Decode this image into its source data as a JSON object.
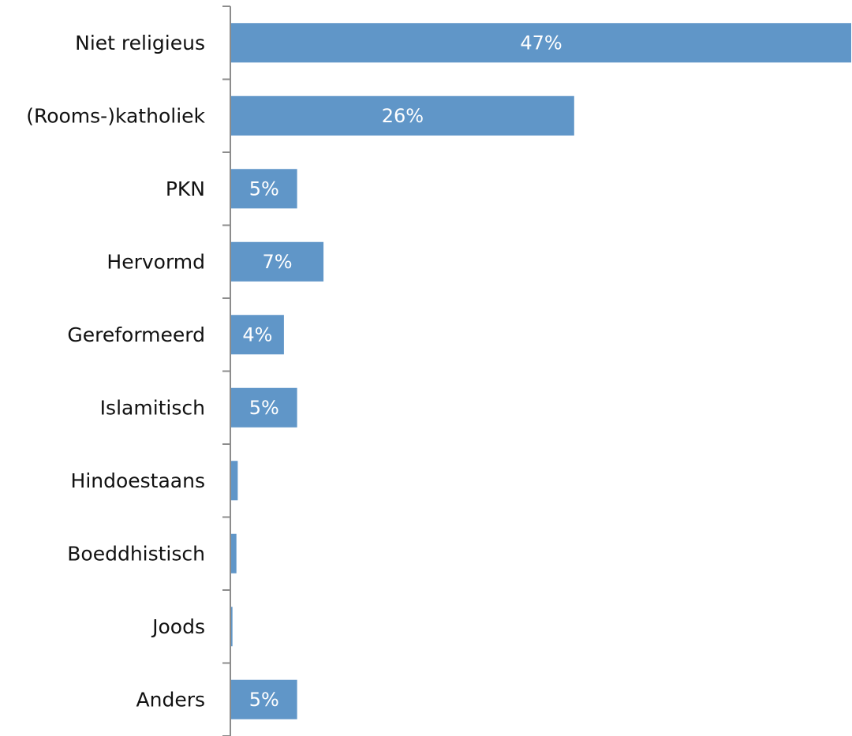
{
  "chart_data": {
    "type": "bar",
    "orientation": "horizontal",
    "categories": [
      "Niet religieus",
      "(Rooms-)katholiek",
      "PKN",
      "Hervormd",
      "Gereformeerd",
      "Islamitisch",
      "Hindoestaans",
      "Boeddhistisch",
      "Joods",
      "Anders"
    ],
    "values": [
      47,
      26,
      5,
      7,
      4,
      5,
      0.5,
      0.4,
      0.1,
      5
    ],
    "data_labels": [
      "47%",
      "26%",
      "5%",
      "7%",
      "4%",
      "5%",
      "",
      "",
      "",
      "5%"
    ],
    "xlim": [
      0,
      47
    ],
    "bar_color": "#6096c8",
    "grid": false,
    "legend": "none"
  }
}
